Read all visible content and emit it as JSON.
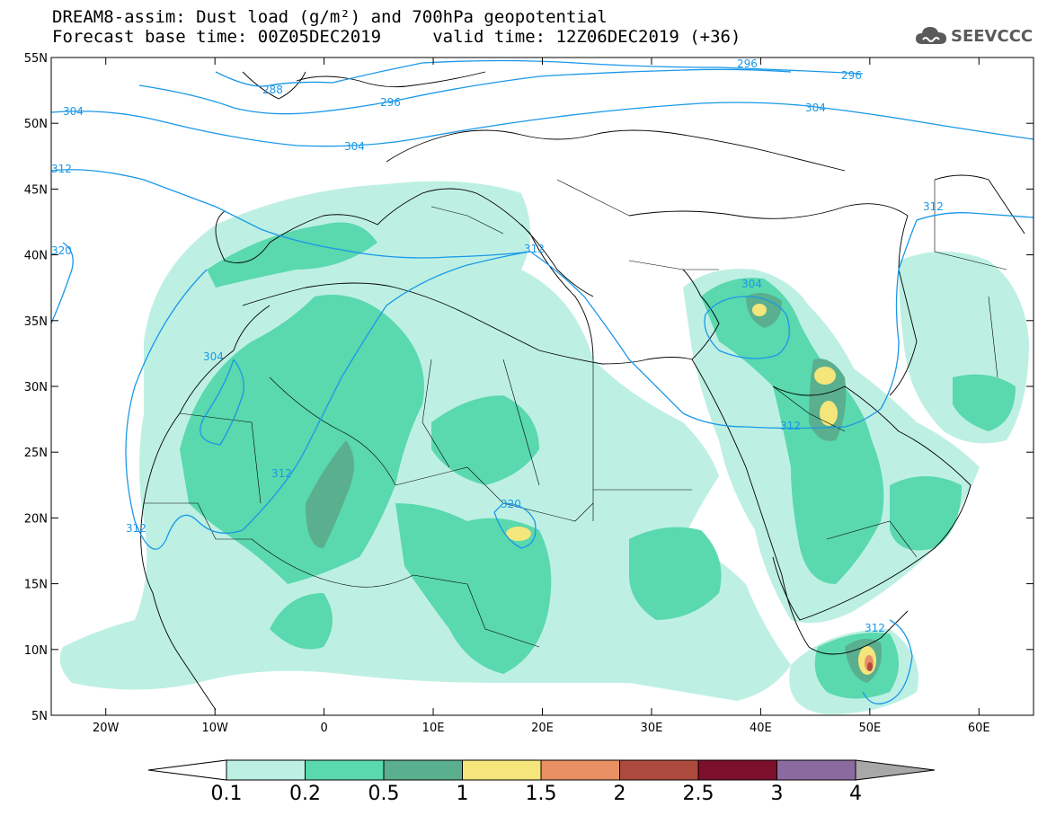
{
  "title_line1": "DREAM8-assim: Dust load (g/m²) and 700hPa geopotential",
  "title_line2": "Forecast base time: 00Z05DEC2019     valid time: 12Z06DEC2019 (+36)",
  "logo": {
    "text": "SEEVCCC",
    "icon": "cloud-icon",
    "color": "#5a5a5a"
  },
  "map": {
    "lon_range": [
      -25,
      65
    ],
    "lat_range": [
      5,
      55
    ],
    "lat_ticks": [
      "55N",
      "50N",
      "45N",
      "40N",
      "35N",
      "30N",
      "25N",
      "20N",
      "15N",
      "10N",
      "5N"
    ],
    "lon_ticks": [
      "20W",
      "10W",
      "0",
      "10E",
      "20E",
      "30E",
      "40E",
      "50E",
      "60E"
    ],
    "contour_color": "#1a98e8",
    "contour_labels": [
      "296",
      "296",
      "296",
      "288",
      "304",
      "304",
      "304",
      "304",
      "304",
      "312",
      "312",
      "312",
      "312",
      "312",
      "312",
      "312",
      "320",
      "320"
    ]
  },
  "colorbar": {
    "labels": [
      "0.1",
      "0.2",
      "0.5",
      "1",
      "1.5",
      "2",
      "2.5",
      "3",
      "4"
    ],
    "colors": [
      "#ffffff",
      "#bdf0e3",
      "#5ad8ae",
      "#5aaf8e",
      "#f4e67a",
      "#e98f64",
      "#ad4a3e",
      "#7b0f2c",
      "#8b6aa0",
      "#a8a8a8"
    ]
  }
}
